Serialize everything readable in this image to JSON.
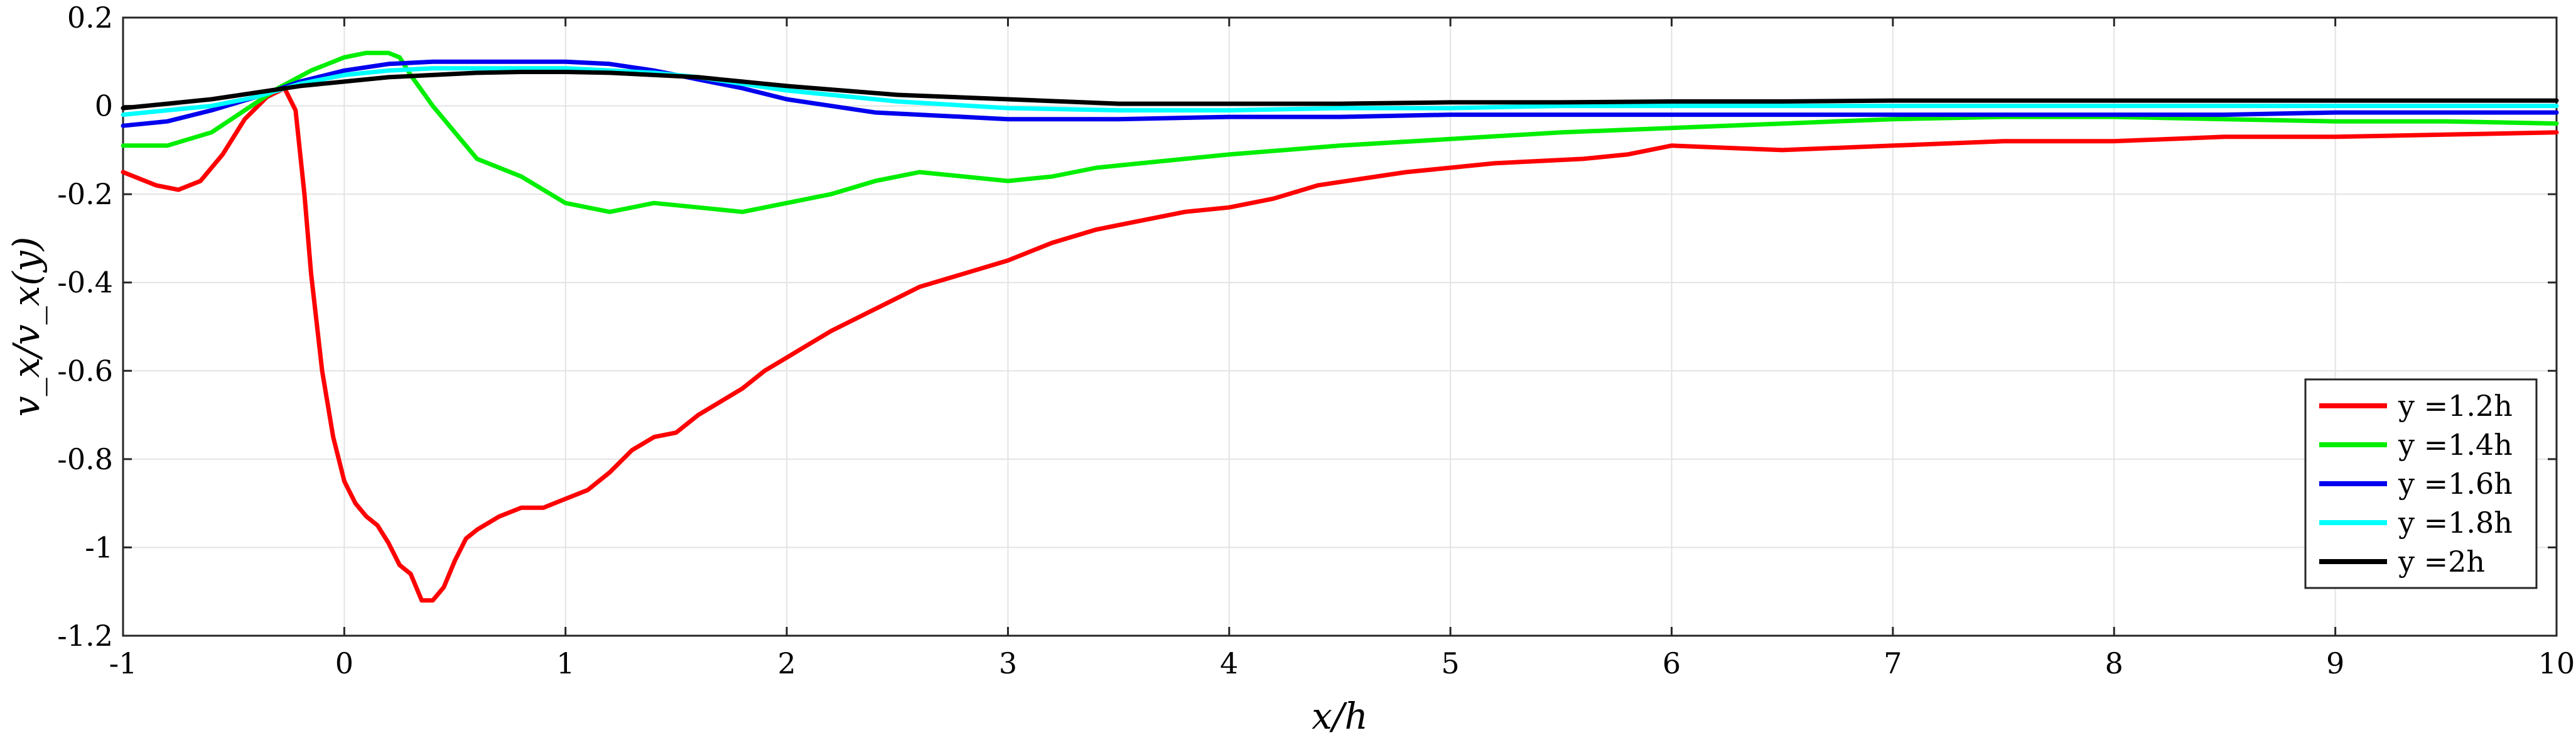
{
  "chart_data": {
    "type": "line",
    "xlabel": "x/h",
    "ylabel": "v_x/v_x(y)",
    "xlim": [
      -1,
      10
    ],
    "ylim": [
      -1.2,
      0.2
    ],
    "xticks": [
      -1,
      0,
      1,
      2,
      3,
      4,
      5,
      6,
      7,
      8,
      9,
      10
    ],
    "yticks": [
      0.2,
      0,
      -0.2,
      -0.4,
      -0.6,
      -0.8,
      -1,
      -1.2
    ],
    "xtick_labels": [
      "-1",
      "0",
      "1",
      "2",
      "3",
      "4",
      "5",
      "6",
      "7",
      "8",
      "9",
      "10"
    ],
    "ytick_labels": [
      "0.2",
      "0",
      "-0.2",
      "-0.4",
      "-0.6",
      "-0.8",
      "-1",
      "-1.2"
    ],
    "grid": true,
    "legend_position": "bottom-right",
    "series": [
      {
        "name": "y =1.2h",
        "color": "#ff0000",
        "x": [
          -1,
          -0.85,
          -0.75,
          -0.65,
          -0.55,
          -0.45,
          -0.35,
          -0.27,
          -0.22,
          -0.18,
          -0.15,
          -0.1,
          -0.05,
          0,
          0.05,
          0.1,
          0.15,
          0.2,
          0.25,
          0.3,
          0.35,
          0.4,
          0.45,
          0.5,
          0.55,
          0.6,
          0.7,
          0.8,
          0.9,
          1,
          1.1,
          1.2,
          1.3,
          1.4,
          1.5,
          1.6,
          1.7,
          1.8,
          1.9,
          2,
          2.2,
          2.4,
          2.6,
          2.8,
          3,
          3.2,
          3.4,
          3.6,
          3.8,
          4,
          4.2,
          4.4,
          4.6,
          4.8,
          5,
          5.2,
          5.4,
          5.6,
          5.8,
          6,
          6.5,
          7,
          7.5,
          8,
          8.5,
          9,
          9.5,
          10
        ],
        "y": [
          -0.15,
          -0.18,
          -0.19,
          -0.17,
          -0.11,
          -0.03,
          0.02,
          0.04,
          -0.01,
          -0.2,
          -0.38,
          -0.6,
          -0.75,
          -0.85,
          -0.9,
          -0.93,
          -0.95,
          -0.99,
          -1.04,
          -1.06,
          -1.12,
          -1.12,
          -1.09,
          -1.03,
          -0.98,
          -0.96,
          -0.93,
          -0.91,
          -0.91,
          -0.89,
          -0.87,
          -0.83,
          -0.78,
          -0.75,
          -0.74,
          -0.7,
          -0.67,
          -0.64,
          -0.6,
          -0.57,
          -0.51,
          -0.46,
          -0.41,
          -0.38,
          -0.35,
          -0.31,
          -0.28,
          -0.26,
          -0.24,
          -0.23,
          -0.21,
          -0.18,
          -0.165,
          -0.15,
          -0.14,
          -0.13,
          -0.125,
          -0.12,
          -0.11,
          -0.09,
          -0.1,
          -0.09,
          -0.08,
          -0.08,
          -0.07,
          -0.07,
          -0.065,
          -0.06
        ]
      },
      {
        "name": "y =1.4h",
        "color": "#00ee00",
        "x": [
          -1,
          -0.8,
          -0.6,
          -0.45,
          -0.3,
          -0.15,
          0,
          0.1,
          0.2,
          0.25,
          0.3,
          0.4,
          0.5,
          0.6,
          0.8,
          1,
          1.2,
          1.4,
          1.6,
          1.8,
          2,
          2.2,
          2.4,
          2.6,
          2.8,
          3,
          3.2,
          3.4,
          3.6,
          3.8,
          4,
          4.5,
          5,
          5.5,
          6,
          6.5,
          7,
          7.5,
          8,
          8.5,
          9,
          9.5,
          10
        ],
        "y": [
          -0.09,
          -0.09,
          -0.06,
          -0.01,
          0.04,
          0.08,
          0.11,
          0.12,
          0.12,
          0.11,
          0.07,
          0.0,
          -0.06,
          -0.12,
          -0.16,
          -0.22,
          -0.24,
          -0.22,
          -0.23,
          -0.24,
          -0.22,
          -0.2,
          -0.17,
          -0.15,
          -0.16,
          -0.17,
          -0.16,
          -0.14,
          -0.13,
          -0.12,
          -0.11,
          -0.09,
          -0.075,
          -0.06,
          -0.05,
          -0.04,
          -0.03,
          -0.025,
          -0.025,
          -0.03,
          -0.035,
          -0.035,
          -0.04
        ]
      },
      {
        "name": "y =1.6h",
        "color": "#0000ee",
        "x": [
          -1,
          -0.8,
          -0.6,
          -0.4,
          -0.2,
          0,
          0.2,
          0.4,
          0.6,
          0.8,
          1,
          1.2,
          1.4,
          1.6,
          1.8,
          2,
          2.2,
          2.4,
          2.6,
          2.8,
          3,
          3.5,
          4,
          4.5,
          5,
          5.5,
          6,
          6.5,
          7,
          7.5,
          8,
          8.5,
          9,
          9.5,
          10
        ],
        "y": [
          -0.045,
          -0.035,
          -0.01,
          0.02,
          0.055,
          0.08,
          0.095,
          0.1,
          0.1,
          0.1,
          0.1,
          0.095,
          0.08,
          0.06,
          0.04,
          0.015,
          0.0,
          -0.015,
          -0.02,
          -0.025,
          -0.03,
          -0.03,
          -0.025,
          -0.025,
          -0.02,
          -0.02,
          -0.02,
          -0.02,
          -0.02,
          -0.02,
          -0.02,
          -0.02,
          -0.015,
          -0.015,
          -0.015
        ]
      },
      {
        "name": "y =1.8h",
        "color": "#00ffff",
        "x": [
          -1,
          -0.8,
          -0.6,
          -0.4,
          -0.2,
          0,
          0.2,
          0.4,
          0.6,
          0.8,
          1,
          1.2,
          1.4,
          1.6,
          1.8,
          2,
          2.5,
          3,
          3.5,
          4,
          4.5,
          5,
          5.5,
          6,
          6.5,
          7,
          7.5,
          8,
          8.5,
          9,
          9.5,
          10
        ],
        "y": [
          -0.02,
          -0.01,
          0.0,
          0.02,
          0.05,
          0.07,
          0.08,
          0.085,
          0.085,
          0.085,
          0.085,
          0.08,
          0.075,
          0.065,
          0.05,
          0.035,
          0.01,
          -0.005,
          -0.01,
          -0.01,
          -0.005,
          -0.005,
          0.0,
          0.0,
          0.0,
          0.0,
          0.0,
          0.0,
          0.0,
          0.0,
          0.0,
          0.0
        ]
      },
      {
        "name": "y =2h",
        "color": "#000000",
        "x": [
          -1,
          -0.8,
          -0.6,
          -0.4,
          -0.2,
          0,
          0.2,
          0.4,
          0.6,
          0.8,
          1,
          1.2,
          1.4,
          1.6,
          1.8,
          2,
          2.5,
          3,
          3.5,
          4,
          4.5,
          5,
          5.5,
          6,
          6.5,
          7,
          7.5,
          8,
          8.5,
          9,
          9.5,
          10
        ],
        "y": [
          -0.005,
          0.005,
          0.015,
          0.03,
          0.045,
          0.055,
          0.065,
          0.07,
          0.075,
          0.077,
          0.077,
          0.075,
          0.07,
          0.065,
          0.055,
          0.045,
          0.025,
          0.015,
          0.005,
          0.005,
          0.005,
          0.008,
          0.008,
          0.01,
          0.01,
          0.012,
          0.012,
          0.012,
          0.012,
          0.012,
          0.012,
          0.012
        ]
      }
    ]
  }
}
